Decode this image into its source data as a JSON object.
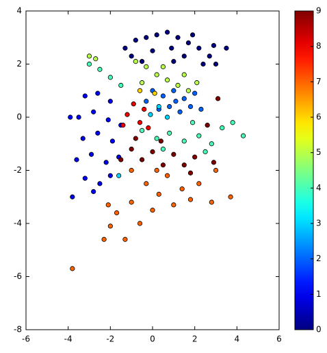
{
  "chart_data": {
    "type": "scatter",
    "xlim": [
      -6,
      6
    ],
    "ylim": [
      -8,
      4
    ],
    "xticks": [
      -6,
      -4,
      -2,
      0,
      2,
      4,
      6
    ],
    "yticks": [
      -8,
      -6,
      -4,
      -2,
      0,
      2,
      4
    ],
    "colormap": "jet",
    "clim": [
      0,
      9
    ],
    "colorbar_ticks": [
      0,
      1,
      2,
      3,
      4,
      5,
      6,
      7,
      8,
      9
    ],
    "series": [
      {
        "x": [
          -1.3,
          -0.8,
          -0.3,
          0.2,
          0.7,
          1.2,
          1.7,
          2.2,
          2.7,
          3.0,
          -1.0,
          0,
          0.9,
          1.5,
          2.4,
          3.5,
          -0.5,
          1.0,
          2.9,
          1.9,
          -3.2,
          -2.6,
          -2.0,
          -3.5,
          -2.8,
          -2.1,
          -1.5,
          -3.3,
          -2.6,
          -1.9,
          -3.6,
          -2.9,
          -2.2,
          -1.6,
          -3.2,
          -2.5,
          -2.0,
          -3.8,
          -2.8,
          -3.9,
          0,
          0.5,
          1.0,
          1.5,
          2.0,
          0.3,
          0.8,
          1.3,
          1.8,
          2.3,
          -0.3,
          1.1,
          0.3,
          -0.1,
          0.7,
          -1.6,
          -0.5,
          0.2,
          0.8,
          1.5,
          2.2,
          2.8,
          3.3,
          3.8,
          4.3,
          1.9,
          0.5,
          2.5,
          -3.0,
          -2.5,
          -2.0,
          -1.5,
          -0.8,
          -0.3,
          0.2,
          0.7,
          1.2,
          1.7,
          2.1,
          -0.5,
          0.5,
          1.5,
          -3.0,
          -2.7,
          -0.6,
          0.1,
          -2.3,
          -2.0,
          -1.7,
          -1.3,
          -1.0,
          -0.6,
          -0.3,
          0,
          0.3,
          0.7,
          1.0,
          1.4,
          1.8,
          2.2,
          2.8,
          3.0,
          3.7,
          -1.0,
          0.2,
          -2.1,
          -3.8,
          -1.2,
          -0.6,
          -0.9,
          -0.2,
          -1.4,
          -0.4,
          -1.5,
          -1.0,
          -0.5,
          0,
          0.5,
          1.0,
          1.5,
          2.0,
          -0.8,
          0.4,
          2.6,
          2.9,
          1.8,
          3.1
        ],
        "values": [
          2.6,
          2.9,
          3.0,
          3.1,
          3.2,
          3.0,
          2.8,
          2.6,
          2.3,
          2.0,
          2.3,
          2.5,
          2.6,
          2.3,
          2.0,
          2.6,
          2.1,
          2.1,
          2.7,
          3.1,
          0.8,
          0.9,
          0.6,
          0,
          0.2,
          -0.1,
          -0.3,
          -0.8,
          -0.6,
          -0.9,
          -1.6,
          -1.4,
          -1.7,
          -1.5,
          -2.3,
          -2.5,
          -2.2,
          -3.0,
          -2.8,
          0,
          1.0,
          0.8,
          1.0,
          0.7,
          0.9,
          0.3,
          0.4,
          0.2,
          0.4,
          0.3,
          0.6,
          0.6,
          0.4,
          0.1,
          0,
          -2.2,
          -0.5,
          -0.8,
          -0.6,
          -0.9,
          -0.7,
          -1.0,
          -0.4,
          -0.2,
          -0.7,
          -0.2,
          -1.2,
          -1.3,
          2.0,
          1.8,
          1.5,
          1.2,
          2.1,
          1.9,
          1.6,
          1.4,
          1.2,
          1.0,
          1.3,
          1.3,
          1.9,
          1.6,
          2.3,
          2.2,
          1.0,
          0.9,
          -4.6,
          -4.1,
          -3.6,
          -4.6,
          -3.2,
          -4.0,
          -2.5,
          -3.5,
          -2.9,
          -2.2,
          -3.3,
          -2.7,
          -3.1,
          -2.5,
          -3.2,
          -2.0,
          -3.0,
          -2.0,
          -2.0,
          -3.3,
          -5.7,
          0.1,
          -0.2,
          0.5,
          -0.4,
          -0.3,
          0.3,
          -1.6,
          -1.2,
          -1.6,
          -1.3,
          -1.8,
          -1.4,
          -1.8,
          -1.5,
          -0.8,
          -0.9,
          -0.3,
          -1.7,
          -2.1,
          0.7
        ],
        "color_values": [
          0,
          0,
          0,
          0,
          0,
          0,
          0,
          0,
          0,
          0,
          0,
          0,
          0,
          0,
          0,
          0,
          0,
          0,
          0,
          0,
          1,
          1,
          1,
          1,
          1,
          1,
          1,
          1,
          1,
          1,
          1,
          1,
          1,
          1,
          1,
          1,
          1,
          1,
          1,
          1,
          2,
          2,
          2,
          2,
          2,
          2,
          2,
          2,
          2,
          2,
          2,
          2,
          3,
          3,
          3,
          3,
          4,
          4,
          4,
          4,
          4,
          4,
          4,
          4,
          4,
          4,
          4,
          4,
          4,
          4,
          4,
          4,
          5,
          5,
          5,
          5,
          5,
          5,
          5,
          5,
          5,
          5,
          5,
          5,
          6,
          6,
          7,
          7,
          7,
          7,
          7,
          7,
          7,
          7,
          7,
          7,
          7,
          7,
          7,
          7,
          7,
          7,
          7,
          7,
          7,
          7,
          7,
          8,
          8,
          8,
          8,
          8,
          8,
          9,
          9,
          9,
          9,
          9,
          9,
          9,
          9,
          9,
          9,
          9,
          9,
          9,
          9
        ]
      }
    ]
  }
}
